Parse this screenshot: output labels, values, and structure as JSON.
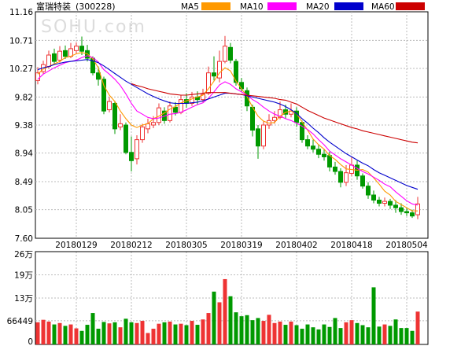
{
  "title": "富瑞特装",
  "code": "(300228)",
  "watermark": "SOHU.com",
  "legend": [
    {
      "name": "MA5",
      "color": "#ff9900"
    },
    {
      "name": "MA10",
      "color": "#ff00ff"
    },
    {
      "name": "MA20",
      "color": "#0000cc"
    },
    {
      "name": "MA60",
      "color": "#cc0000"
    }
  ],
  "colors": {
    "up": "#ee3333",
    "down": "#009900"
  },
  "chart_data": [
    {
      "type": "candlestick",
      "title": "富瑞特装",
      "y_ticks": [
        "11.16",
        "10.71",
        "10.27",
        "9.82",
        "9.38",
        "8.94",
        "8.49",
        "8.05",
        "7.60"
      ],
      "ylim": [
        7.6,
        11.16
      ],
      "x_ticks": [
        "20180129",
        "20180212",
        "20180305",
        "20180319",
        "20180402",
        "20180418",
        "20180504"
      ],
      "x_tick_index": [
        7,
        17,
        27,
        37,
        47,
        57,
        67
      ],
      "grid": true,
      "series": [
        {
          "name": "MA5",
          "values": [
            10.18,
            10.26,
            10.3,
            10.34,
            10.38,
            10.44,
            10.46,
            10.5,
            10.52,
            10.5,
            10.42,
            10.28,
            10.0,
            9.85,
            9.75,
            9.6,
            9.48,
            9.38,
            9.34,
            9.38,
            9.4,
            9.48,
            9.52,
            9.57,
            9.63,
            9.67,
            9.73,
            9.76,
            9.79,
            9.82,
            9.85,
            9.95,
            10.07,
            10.2,
            10.28,
            10.23,
            10.07,
            9.95,
            9.83,
            9.66,
            9.52,
            9.44,
            9.41,
            9.42,
            9.52,
            9.58,
            9.6,
            9.56,
            9.43,
            9.3,
            9.16,
            9.07,
            9.0,
            8.9,
            8.84,
            8.76,
            8.69,
            8.68,
            8.67,
            8.68,
            8.64,
            8.55,
            8.45,
            8.34,
            8.28,
            8.18,
            8.13,
            8.08,
            8.03,
            8.03
          ]
        },
        {
          "name": "MA10",
          "values": [
            10.1,
            10.18,
            10.23,
            10.28,
            10.32,
            10.36,
            10.38,
            10.4,
            10.44,
            10.47,
            10.44,
            10.37,
            10.25,
            10.18,
            10.1,
            10.0,
            9.87,
            9.72,
            9.6,
            9.55,
            9.5,
            9.48,
            9.49,
            9.52,
            9.55,
            9.56,
            9.58,
            9.62,
            9.66,
            9.7,
            9.73,
            9.8,
            9.9,
            10.01,
            10.06,
            10.02,
            9.95,
            9.9,
            9.85,
            9.78,
            9.73,
            9.66,
            9.6,
            9.55,
            9.52,
            9.48,
            9.45,
            9.41,
            9.36,
            9.31,
            9.24,
            9.15,
            9.07,
            8.97,
            8.91,
            8.85,
            8.8,
            8.75,
            8.7,
            8.65,
            8.61,
            8.56,
            8.51,
            8.45,
            8.41,
            8.33,
            8.26,
            8.19,
            8.14,
            8.12
          ]
        },
        {
          "name": "MA20",
          "values": [
            10.25,
            10.28,
            10.3,
            10.33,
            10.35,
            10.37,
            10.38,
            10.39,
            10.4,
            10.41,
            10.39,
            10.36,
            10.31,
            10.25,
            10.19,
            10.13,
            10.07,
            10.02,
            9.97,
            9.92,
            9.87,
            9.83,
            9.79,
            9.76,
            9.73,
            9.72,
            9.72,
            9.72,
            9.73,
            9.74,
            9.76,
            9.79,
            9.82,
            9.85,
            9.88,
            9.88,
            9.87,
            9.86,
            9.84,
            9.82,
            9.8,
            9.78,
            9.76,
            9.74,
            9.71,
            9.67,
            9.62,
            9.56,
            9.48,
            9.41,
            9.33,
            9.26,
            9.18,
            9.11,
            9.05,
            8.99,
            8.93,
            8.88,
            8.83,
            8.78,
            8.74,
            8.68,
            8.63,
            8.59,
            8.55,
            8.51,
            8.47,
            8.43,
            8.4,
            8.37
          ]
        },
        {
          "name": "MA60",
          "values": [
            null,
            null,
            null,
            null,
            null,
            null,
            null,
            null,
            null,
            null,
            null,
            null,
            null,
            null,
            null,
            null,
            null,
            10.03,
            10.0,
            9.98,
            9.95,
            9.93,
            9.91,
            9.89,
            9.87,
            9.86,
            9.85,
            9.85,
            9.86,
            9.87,
            9.88,
            9.89,
            9.89,
            9.89,
            9.89,
            9.88,
            9.87,
            9.86,
            9.85,
            9.84,
            9.83,
            9.82,
            9.81,
            9.8,
            9.78,
            9.77,
            9.74,
            9.71,
            9.66,
            9.61,
            9.57,
            9.53,
            9.49,
            9.46,
            9.43,
            9.4,
            9.37,
            9.34,
            9.32,
            9.29,
            9.27,
            9.25,
            9.23,
            9.21,
            9.19,
            9.17,
            9.15,
            9.13,
            9.11,
            9.1
          ]
        }
      ],
      "candles": [
        [
          10.08,
          10.2,
          10.29,
          10.02,
          1
        ],
        [
          10.22,
          10.33,
          10.39,
          10.18,
          1
        ],
        [
          10.3,
          10.48,
          10.55,
          10.27,
          1
        ],
        [
          10.5,
          10.38,
          10.58,
          10.33,
          0
        ],
        [
          10.4,
          10.54,
          10.62,
          10.36,
          1
        ],
        [
          10.55,
          10.46,
          10.63,
          10.42,
          0
        ],
        [
          10.46,
          10.58,
          10.67,
          10.43,
          1
        ],
        [
          10.55,
          10.62,
          10.68,
          10.5,
          1
        ],
        [
          10.62,
          10.54,
          10.77,
          10.48,
          0
        ],
        [
          10.55,
          10.43,
          10.64,
          10.38,
          0
        ],
        [
          10.43,
          10.2,
          10.46,
          10.16,
          0
        ],
        [
          10.2,
          10.1,
          10.3,
          10.0,
          0
        ],
        [
          10.1,
          9.6,
          10.14,
          9.55,
          0
        ],
        [
          9.62,
          9.75,
          9.82,
          9.58,
          1
        ],
        [
          9.72,
          9.32,
          9.76,
          9.24,
          0
        ],
        [
          9.35,
          9.4,
          9.55,
          9.3,
          1
        ],
        [
          9.38,
          8.95,
          9.42,
          8.92,
          0
        ],
        [
          8.95,
          8.82,
          9.2,
          8.65,
          0
        ],
        [
          8.85,
          9.15,
          9.22,
          8.76,
          1
        ],
        [
          9.15,
          9.35,
          9.4,
          9.1,
          1
        ],
        [
          9.32,
          9.4,
          9.48,
          9.25,
          1
        ],
        [
          9.38,
          9.42,
          9.52,
          9.33,
          1
        ],
        [
          9.42,
          9.65,
          9.72,
          9.38,
          1
        ],
        [
          9.6,
          9.45,
          9.66,
          9.4,
          0
        ],
        [
          9.45,
          9.68,
          9.75,
          9.42,
          1
        ],
        [
          9.66,
          9.58,
          9.74,
          9.53,
          0
        ],
        [
          9.58,
          9.78,
          9.85,
          9.55,
          1
        ],
        [
          9.78,
          9.72,
          9.88,
          9.65,
          0
        ],
        [
          9.72,
          9.82,
          9.9,
          9.68,
          1
        ],
        [
          9.82,
          9.78,
          9.91,
          9.7,
          0
        ],
        [
          9.78,
          9.86,
          9.95,
          9.74,
          1
        ],
        [
          9.88,
          10.2,
          10.3,
          9.85,
          1
        ],
        [
          10.2,
          10.15,
          10.46,
          10.08,
          0
        ],
        [
          10.12,
          10.38,
          10.55,
          10.05,
          1
        ],
        [
          10.38,
          10.62,
          10.78,
          10.35,
          1
        ],
        [
          10.6,
          10.4,
          10.67,
          10.35,
          0
        ],
        [
          10.38,
          10.05,
          10.42,
          10.0,
          0
        ],
        [
          10.05,
          9.95,
          10.12,
          9.9,
          0
        ],
        [
          9.92,
          9.68,
          9.97,
          9.6,
          0
        ],
        [
          9.66,
          9.3,
          9.7,
          9.2,
          0
        ],
        [
          9.32,
          9.05,
          9.38,
          8.85,
          0
        ],
        [
          9.05,
          9.38,
          9.45,
          9.0,
          1
        ],
        [
          9.38,
          9.45,
          9.55,
          9.32,
          1
        ],
        [
          9.45,
          9.5,
          9.6,
          9.4,
          1
        ],
        [
          9.5,
          9.62,
          9.75,
          9.47,
          1
        ],
        [
          9.62,
          9.55,
          9.7,
          9.48,
          0
        ],
        [
          9.55,
          9.6,
          9.72,
          9.5,
          1
        ],
        [
          9.6,
          9.42,
          9.66,
          9.35,
          0
        ],
        [
          9.42,
          9.15,
          9.45,
          9.1,
          0
        ],
        [
          9.15,
          9.05,
          9.22,
          9.0,
          0
        ],
        [
          9.05,
          9.0,
          9.15,
          8.95,
          0
        ],
        [
          9.0,
          8.92,
          9.08,
          8.86,
          0
        ],
        [
          8.92,
          8.88,
          9.0,
          8.82,
          0
        ],
        [
          8.9,
          8.72,
          8.96,
          8.65,
          0
        ],
        [
          8.72,
          8.65,
          8.8,
          8.6,
          0
        ],
        [
          8.65,
          8.48,
          8.7,
          8.4,
          0
        ],
        [
          8.48,
          8.63,
          8.75,
          8.42,
          1
        ],
        [
          8.62,
          8.75,
          8.88,
          8.58,
          1
        ],
        [
          8.75,
          8.58,
          8.82,
          8.52,
          0
        ],
        [
          8.58,
          8.42,
          8.62,
          8.38,
          0
        ],
        [
          8.42,
          8.28,
          8.48,
          8.22,
          0
        ],
        [
          8.28,
          8.2,
          8.35,
          8.15,
          0
        ],
        [
          8.2,
          8.15,
          8.25,
          8.1,
          0
        ],
        [
          8.15,
          8.18,
          8.24,
          8.1,
          1
        ],
        [
          8.18,
          8.12,
          8.22,
          8.06,
          0
        ],
        [
          8.12,
          8.08,
          8.2,
          8.0,
          0
        ],
        [
          8.08,
          8.02,
          8.15,
          7.97,
          0
        ],
        [
          8.02,
          8.0,
          8.08,
          7.95,
          0
        ],
        [
          8.0,
          7.95,
          8.05,
          7.92,
          0
        ],
        [
          7.97,
          8.14,
          8.25,
          7.9,
          1
        ]
      ]
    },
    {
      "type": "bar",
      "title": "",
      "y_ticks": [
        "26万",
        "19万",
        "13万",
        "66449",
        "0"
      ],
      "y_tick_values": [
        260000,
        195000,
        130000,
        66449,
        0
      ],
      "ylim": [
        0,
        260000
      ],
      "values": [
        62000,
        69000,
        64000,
        56000,
        60000,
        52000,
        56000,
        45000,
        38000,
        55000,
        88000,
        44000,
        63000,
        59000,
        62000,
        48000,
        72000,
        62000,
        60000,
        66000,
        32000,
        44000,
        58000,
        62000,
        64000,
        56000,
        58000,
        54000,
        66000,
        55000,
        70000,
        88000,
        148000,
        118000,
        183000,
        135000,
        90000,
        79000,
        82000,
        68000,
        74000,
        66000,
        83000,
        60000,
        64000,
        55000,
        64000,
        54000,
        44000,
        56000,
        48000,
        42000,
        56000,
        49000,
        74000,
        46000,
        62000,
        68000,
        60000,
        54000,
        48000,
        160000,
        50000,
        56000,
        52000,
        70000,
        46000,
        46000,
        38000,
        92000
      ],
      "colors": "from candles: 1 = up, 0 = down"
    }
  ]
}
